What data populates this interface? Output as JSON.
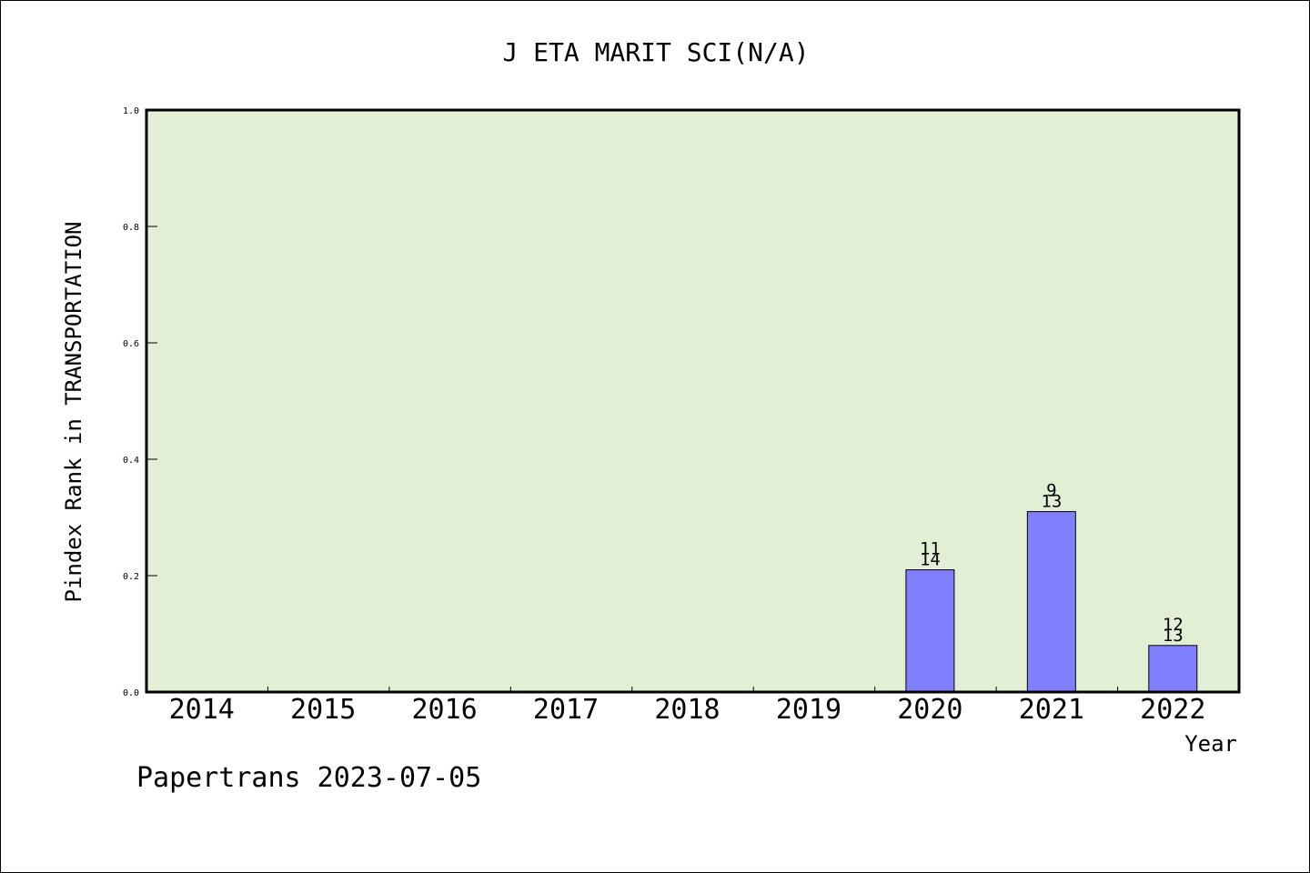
{
  "chart_data": {
    "type": "bar",
    "title": "J ETA MARIT SCI(N/A)",
    "xlabel": "Year",
    "ylabel": "Pindex Rank in TRANSPORTATION",
    "ylim": [
      0,
      1.0
    ],
    "yticks": [
      "0.0",
      "0.2",
      "0.4",
      "0.6",
      "0.8",
      "1.0"
    ],
    "categories": [
      "2014",
      "2015",
      "2016",
      "2017",
      "2018",
      "2019",
      "2020",
      "2021",
      "2022"
    ],
    "values": [
      null,
      null,
      null,
      null,
      null,
      null,
      0.21,
      0.31,
      0.08
    ],
    "labels": [
      null,
      null,
      null,
      null,
      null,
      null,
      {
        "top": "11",
        "bottom": "14"
      },
      {
        "top": "9",
        "bottom": "13"
      },
      {
        "top": "12",
        "bottom": "13"
      }
    ],
    "grid": false,
    "legend": "none",
    "colors": {
      "plot_background": "#e2efd5",
      "bar_fill": "#8080ff",
      "bar_stroke": "#000000",
      "axis": "#000000"
    }
  },
  "footer": {
    "text": "Papertrans 2023-07-05"
  }
}
